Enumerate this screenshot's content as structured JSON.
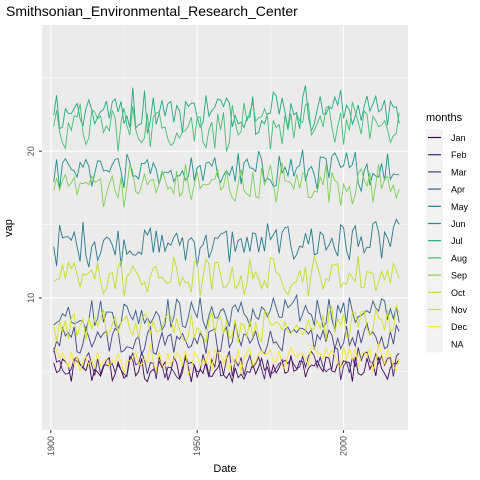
{
  "chart_data": {
    "type": "line",
    "title": "Smithsonian_Environmental_Research_Center",
    "xlabel": "Date",
    "ylabel": "vap",
    "x_ticks": [
      1900,
      1950,
      2000
    ],
    "y_ticks": [
      10,
      20
    ],
    "xlim": [
      1897,
      2022
    ],
    "ylim": [
      1.0,
      28.6
    ],
    "legend": {
      "title": "months",
      "position": "right"
    },
    "x_start": 1901,
    "x_end": 2019,
    "series": [
      {
        "name": "Jan",
        "color": "#440154",
        "base": 5.1,
        "amp": 0.8
      },
      {
        "name": "Feb",
        "color": "#482576",
        "base": 5.4,
        "amp": 0.9
      },
      {
        "name": "Mar",
        "color": "#414487",
        "base": 7.1,
        "amp": 0.9
      },
      {
        "name": "Apr",
        "color": "#35608D",
        "base": 8.9,
        "amp": 0.9
      },
      {
        "name": "May",
        "color": "#2A788E",
        "base": 13.7,
        "amp": 1.2
      },
      {
        "name": "Jun",
        "color": "#21908C",
        "base": 18.6,
        "amp": 1.1
      },
      {
        "name": "Jul",
        "color": "#22A884",
        "base": 22.8,
        "amp": 1.3
      },
      {
        "name": "Aug",
        "color": "#43BF71",
        "base": 21.7,
        "amp": 1.3
      },
      {
        "name": "Sep",
        "color": "#7AD151",
        "base": 17.7,
        "amp": 1.2
      },
      {
        "name": "Oct",
        "color": "#BBDF27",
        "base": 11.4,
        "amp": 1.1
      },
      {
        "name": "Nov",
        "color": "#D4E21A",
        "base": 8.1,
        "amp": 0.9
      },
      {
        "name": "Dec",
        "color": "#FDE725",
        "base": 5.8,
        "amp": 0.8
      },
      {
        "name": "NA",
        "color": "#7F7F7F",
        "base": null,
        "amp": 0
      }
    ]
  }
}
